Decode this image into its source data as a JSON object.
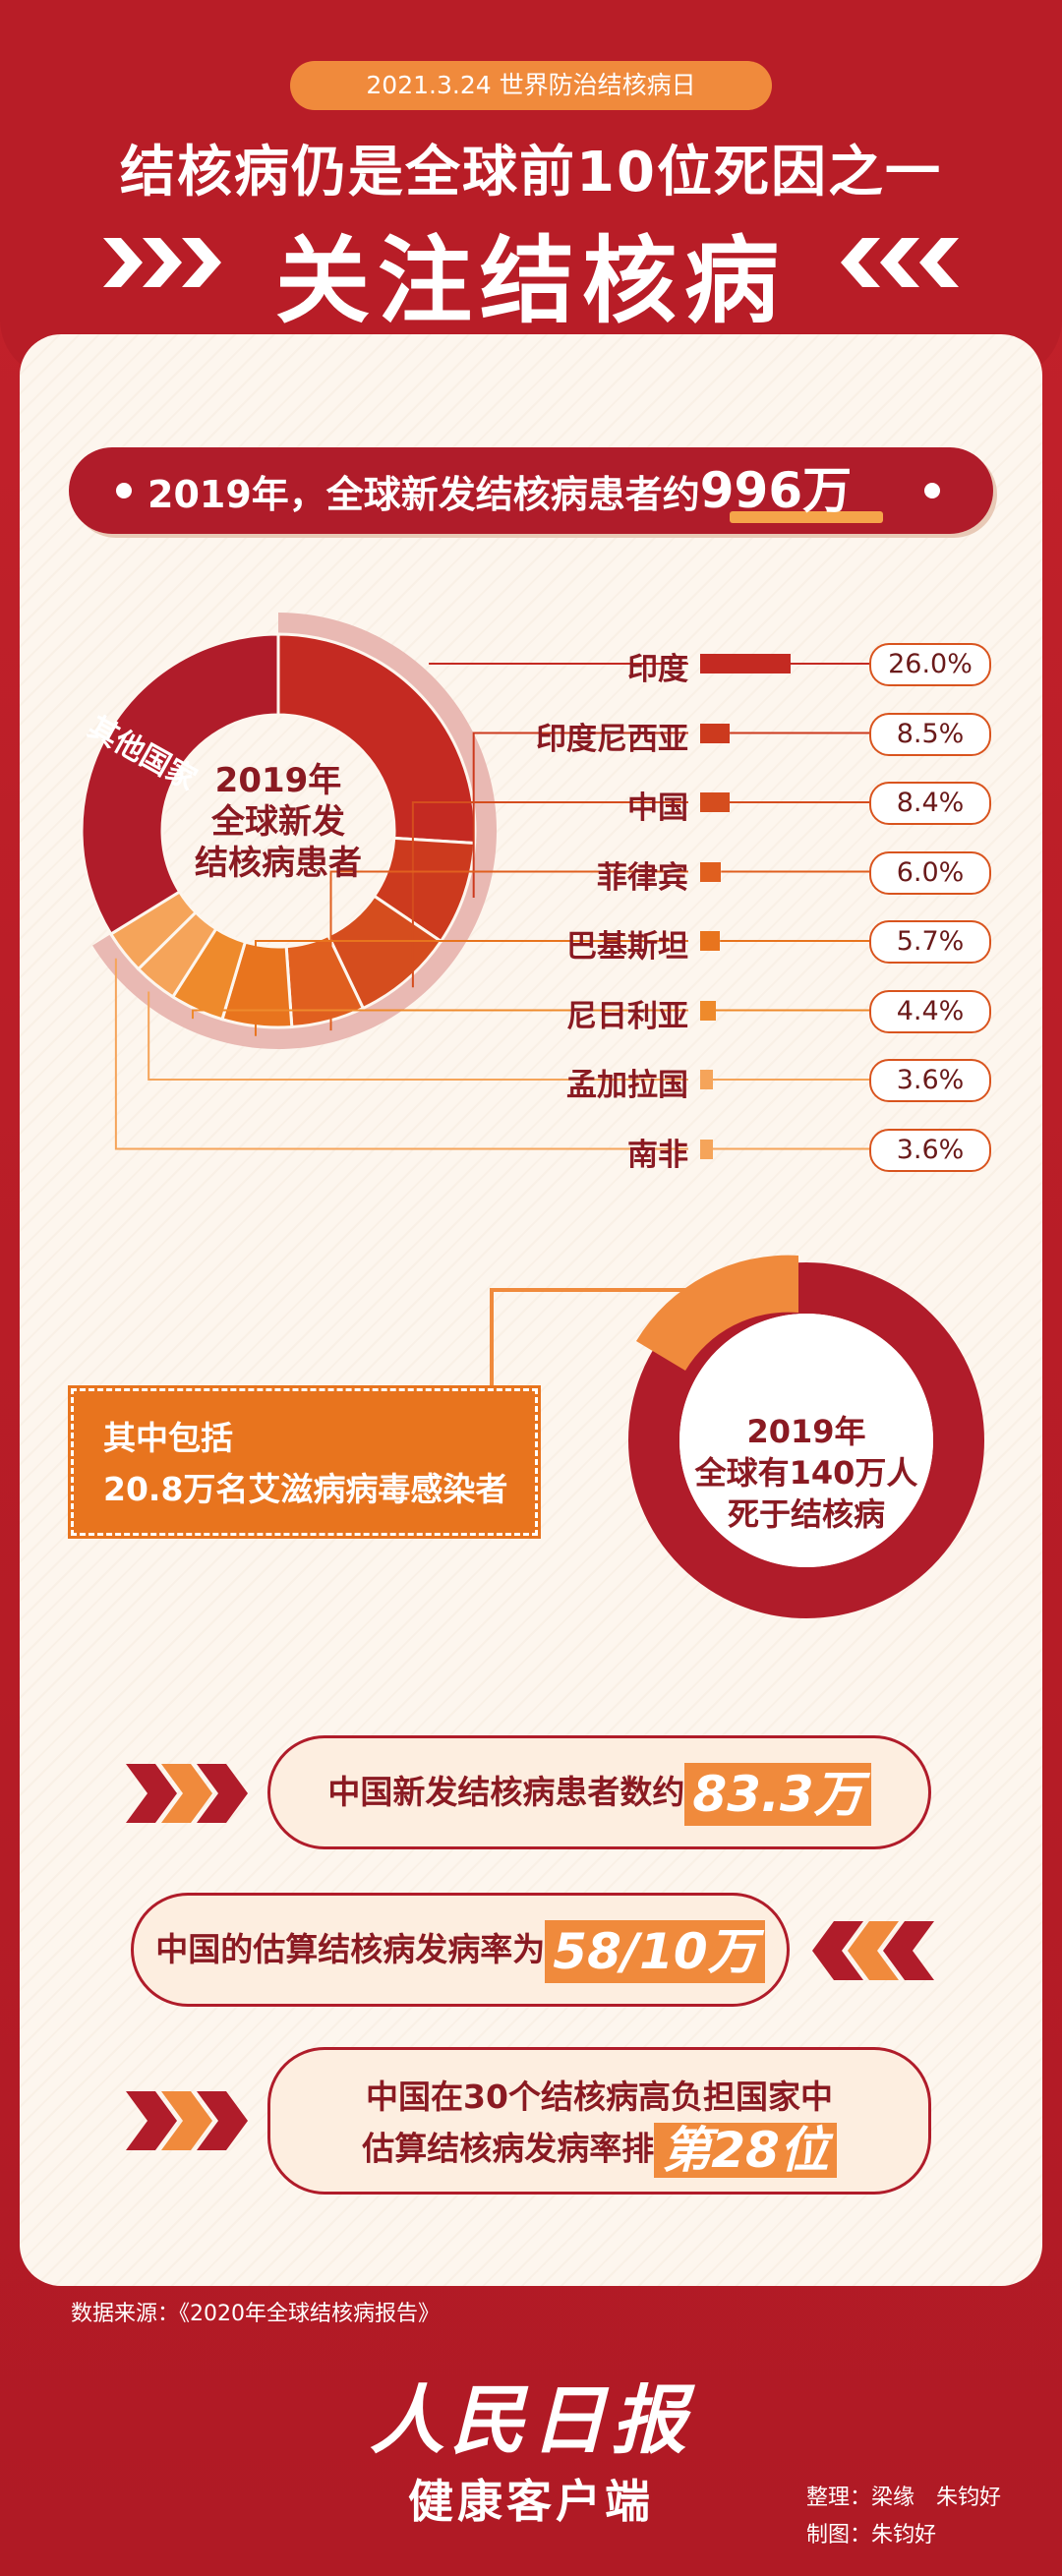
{
  "header": {
    "date_pill": "2021.3.24 世界防治结核病日",
    "headline": "结核病仍是全球前10位死因之一",
    "title": "关注结核病"
  },
  "banner": {
    "prefix": "2019年，全球新发结核病患者约",
    "value": "996万"
  },
  "chart_data": [
    {
      "type": "pie",
      "title": "2019年全球新发结核病患者",
      "center_label": "2019年\n全球新发\n结核病患者",
      "other_label": "其他国家",
      "categories": [
        "印度",
        "印度尼西亚",
        "中国",
        "菲律宾",
        "巴基斯坦",
        "尼日利亚",
        "孟加拉国",
        "南非"
      ],
      "values": [
        26.0,
        8.5,
        8.4,
        6.0,
        5.7,
        4.4,
        3.6,
        3.6
      ],
      "value_labels": [
        "26.0%",
        "8.5%",
        "8.4%",
        "6.0%",
        "5.7%",
        "4.4%",
        "3.6%",
        "3.6%"
      ],
      "colors": [
        "#c42a22",
        "#cc3a1e",
        "#d54d1e",
        "#e05f1f",
        "#e8741e",
        "#ee8a2c",
        "#f5a45a",
        "#f5a45a"
      ],
      "other_color": "#b01c2a"
    },
    {
      "type": "pie",
      "center_label": "2019年\n全球有140万人\n死于结核病",
      "colors": [
        "#b01c2a",
        "#f08a3c"
      ]
    }
  ],
  "hiv": {
    "line1": "其中包括",
    "line2": "20.8万名艾滋病病毒感染者"
  },
  "stats": [
    {
      "text": "中国新发结核病患者数约",
      "value": "83.3万"
    },
    {
      "text": "中国的估算结核病发病率为",
      "value": "58/10万"
    },
    {
      "line1": "中国在30个结核病高负担国家中",
      "line2": "估算结核病发病率排",
      "value": "第28位"
    }
  ],
  "source": "数据来源：《2020年全球结核病报告》",
  "footer": {
    "logo": "人民日报",
    "subtitle": "健康客户端",
    "credit1": "整理：梁缘　朱钧好",
    "credit2": "制图：朱钧好"
  }
}
